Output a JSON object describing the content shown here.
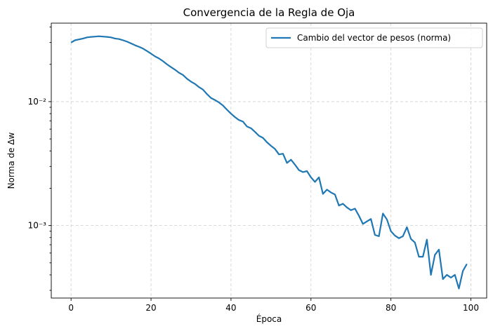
{
  "chart_data": {
    "type": "line",
    "title": "Convergencia de la Regla de Oja",
    "xlabel": "Época",
    "ylabel": "Norma de Δw",
    "yscale": "log",
    "xlim": [
      -4.95,
      103.95
    ],
    "ylim": [
      0.00026,
      0.043
    ],
    "xticks": [
      0,
      20,
      40,
      60,
      80,
      100
    ],
    "xtick_labels": [
      "0",
      "20",
      "40",
      "60",
      "80",
      "100"
    ],
    "yticks": [
      0.01,
      0.001
    ],
    "ytick_labels": [
      "10⁻²",
      "10⁻³"
    ],
    "grid": true,
    "legend_position": "top-right",
    "series": [
      {
        "name": "Cambio del vector de pesos (norma)",
        "color": "#1f77b4",
        "x": [
          0,
          1,
          2,
          3,
          4,
          5,
          6,
          7,
          8,
          9,
          10,
          11,
          12,
          13,
          14,
          15,
          16,
          17,
          18,
          19,
          20,
          21,
          22,
          23,
          24,
          25,
          26,
          27,
          28,
          29,
          30,
          31,
          32,
          33,
          34,
          35,
          36,
          37,
          38,
          39,
          40,
          41,
          42,
          43,
          44,
          45,
          46,
          47,
          48,
          49,
          50,
          51,
          52,
          53,
          54,
          55,
          56,
          57,
          58,
          59,
          60,
          61,
          62,
          63,
          64,
          65,
          66,
          67,
          68,
          69,
          70,
          71,
          72,
          73,
          74,
          75,
          76,
          77,
          78,
          79,
          80,
          81,
          82,
          83,
          84,
          85,
          86,
          87,
          88,
          89,
          90,
          91,
          92,
          93,
          94,
          95,
          96,
          97,
          98,
          99
        ],
        "y": [
          0.03,
          0.0313,
          0.0318,
          0.0323,
          0.033,
          0.0333,
          0.0335,
          0.0337,
          0.0335,
          0.0333,
          0.033,
          0.0323,
          0.032,
          0.0313,
          0.0305,
          0.0295,
          0.0285,
          0.0277,
          0.0268,
          0.0256,
          0.0244,
          0.0232,
          0.0223,
          0.0212,
          0.02,
          0.019,
          0.0181,
          0.0171,
          0.0164,
          0.0153,
          0.0145,
          0.0139,
          0.0131,
          0.0125,
          0.0115,
          0.0107,
          0.0103,
          0.00985,
          0.0093,
          0.0086,
          0.008,
          0.0075,
          0.0071,
          0.0069,
          0.0063,
          0.0061,
          0.0057,
          0.0053,
          0.0051,
          0.0047,
          0.0044,
          0.00415,
          0.00375,
          0.0038,
          0.0032,
          0.0034,
          0.0031,
          0.0028,
          0.0027,
          0.00275,
          0.00245,
          0.00225,
          0.00245,
          0.0018,
          0.00195,
          0.00185,
          0.00178,
          0.00145,
          0.0015,
          0.0014,
          0.00133,
          0.00137,
          0.0012,
          0.00103,
          0.00108,
          0.00113,
          0.00084,
          0.00082,
          0.00125,
          0.00112,
          0.0009,
          0.00083,
          0.00079,
          0.00082,
          0.00097,
          0.00078,
          0.00073,
          0.00056,
          0.00056,
          0.00077,
          0.0004,
          0.00058,
          0.00064,
          0.00037,
          0.0004,
          0.00038,
          0.0004,
          0.00031,
          0.00043,
          0.00049
        ]
      }
    ]
  }
}
